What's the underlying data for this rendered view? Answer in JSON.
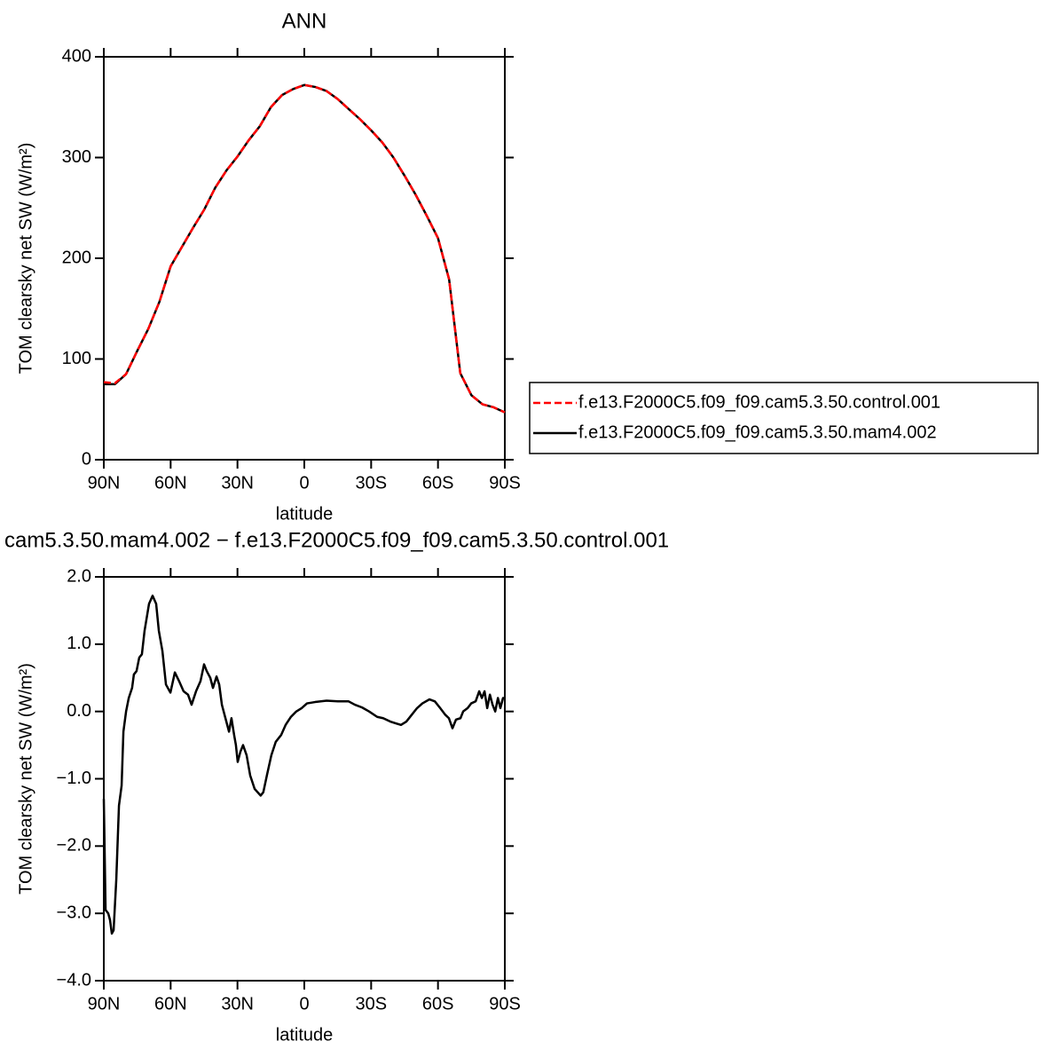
{
  "chart_data": [
    {
      "type": "line",
      "title": "ANN",
      "xlabel": "latitude",
      "ylabel": "TOM clearsky net SW (W/m²)",
      "x": [
        90,
        85,
        80,
        75,
        70,
        65,
        60,
        55,
        50,
        45,
        40,
        35,
        30,
        25,
        20,
        15,
        10,
        5,
        0,
        -5,
        -10,
        -15,
        -20,
        -25,
        -30,
        -35,
        -40,
        -45,
        -50,
        -55,
        -60,
        -65,
        -70,
        -75,
        -80,
        -85,
        -90
      ],
      "series": [
        {
          "name": "f.e13.F2000C5.f09_f09.cam5.3.50.control.001",
          "color": "#ff0000",
          "line_style": "dashed",
          "values": [
            77,
            76,
            85,
            108,
            130,
            157,
            192,
            211,
            230,
            248,
            270,
            287,
            301,
            317,
            331,
            350,
            362,
            368,
            372,
            370,
            366,
            358,
            348,
            338,
            327,
            315,
            300,
            282,
            263,
            242,
            220,
            179,
            86,
            64,
            55,
            52,
            47
          ]
        },
        {
          "name": "f.e13.F2000C5.f09_f09.cam5.3.50.mam4.002",
          "color": "#000000",
          "line_style": "solid",
          "values": [
            75,
            75,
            85,
            108,
            130,
            157,
            192,
            211,
            230,
            248,
            270,
            287,
            301,
            317,
            331,
            350,
            362,
            368,
            372,
            370,
            366,
            358,
            348,
            338,
            327,
            315,
            300,
            282,
            263,
            242,
            220,
            179,
            86,
            64,
            55,
            52,
            47
          ]
        }
      ],
      "xlim": [
        90,
        -90
      ],
      "xticks": [
        {
          "value": 90,
          "label": "90N"
        },
        {
          "value": 60,
          "label": "60N"
        },
        {
          "value": 30,
          "label": "30N"
        },
        0,
        {
          "value": -30,
          "label": "30S"
        },
        {
          "value": -60,
          "label": "60S"
        },
        {
          "value": -90,
          "label": "90S"
        }
      ],
      "ylim": [
        0,
        400
      ],
      "yticks": [
        0,
        100,
        200,
        300,
        400
      ],
      "legend_position": "right"
    },
    {
      "type": "line",
      "title": "cam5.3.50.mam4.002 − f.e13.F2000C5.f09_f09.cam5.3.50.control.001",
      "xlabel": "latitude",
      "ylabel": "TOM clearsky net SW (W/m²)",
      "x": [
        90,
        89.2,
        88.0,
        87.2,
        86.4,
        85.6,
        84.4,
        83.2,
        82.0,
        81.2,
        80.0,
        78.8,
        77.3,
        76.5,
        75.3,
        74.1,
        72.9,
        71.7,
        69.7,
        68.1,
        66.5,
        65.3,
        63.7,
        62.1,
        60.1,
        58.1,
        56.2,
        54.2,
        52.2,
        50.6,
        48.6,
        46.6,
        45.0,
        43.8,
        42.2,
        41.0,
        39.4,
        38.2,
        37.0,
        35.4,
        33.8,
        32.7,
        31.5,
        30.7,
        29.9,
        28.7,
        27.5,
        25.9,
        24.3,
        22.3,
        19.6,
        18.4,
        16.8,
        14.8,
        12.8,
        10.4,
        8.4,
        6.0,
        3.6,
        1.2,
        -1.2,
        -4.8,
        -10.0,
        -15.1,
        -19.9,
        -22.7,
        -25.9,
        -29.1,
        -32.7,
        -35.4,
        -38.6,
        -41.4,
        -43.4,
        -45.8,
        -48.2,
        -50.6,
        -53.0,
        -56.2,
        -58.6,
        -61.0,
        -63.3,
        -64.9,
        -66.5,
        -68.1,
        -70.1,
        -71.3,
        -73.3,
        -74.9,
        -76.9,
        -78.5,
        -79.7,
        -80.9,
        -82.1,
        -83.3,
        -84.5,
        -85.7,
        -86.9,
        -88.0,
        -89.2,
        -90
      ],
      "values": [
        -1.3,
        -2.95,
        -3.0,
        -3.1,
        -3.3,
        -3.25,
        -2.5,
        -1.4,
        -1.1,
        -0.3,
        0.0,
        0.2,
        0.35,
        0.55,
        0.6,
        0.8,
        0.85,
        1.2,
        1.6,
        1.72,
        1.6,
        1.2,
        0.9,
        0.4,
        0.28,
        0.58,
        0.45,
        0.3,
        0.25,
        0.1,
        0.3,
        0.45,
        0.7,
        0.6,
        0.5,
        0.35,
        0.52,
        0.4,
        0.1,
        -0.1,
        -0.3,
        -0.1,
        -0.35,
        -0.5,
        -0.75,
        -0.6,
        -0.5,
        -0.65,
        -0.95,
        -1.15,
        -1.25,
        -1.2,
        -0.95,
        -0.65,
        -0.45,
        -0.35,
        -0.2,
        -0.08,
        0.0,
        0.05,
        0.12,
        0.14,
        0.16,
        0.15,
        0.15,
        0.1,
        0.06,
        0.0,
        -0.08,
        -0.1,
        -0.15,
        -0.18,
        -0.2,
        -0.15,
        -0.05,
        0.05,
        0.12,
        0.18,
        0.15,
        0.05,
        -0.05,
        -0.1,
        -0.25,
        -0.12,
        -0.1,
        0.0,
        0.05,
        0.12,
        0.15,
        0.3,
        0.2,
        0.3,
        0.05,
        0.25,
        0.1,
        0.0,
        0.2,
        0.05,
        0.2,
        0.2
      ],
      "color": "#000000",
      "xlim": [
        90,
        -90
      ],
      "xticks": [
        {
          "value": 90,
          "label": "90N"
        },
        {
          "value": 60,
          "label": "60N"
        },
        {
          "value": 30,
          "label": "30N"
        },
        0,
        {
          "value": -30,
          "label": "30S"
        },
        {
          "value": -60,
          "label": "60S"
        },
        {
          "value": -90,
          "label": "90S"
        }
      ],
      "ylim": [
        -4,
        2
      ],
      "yticks": [
        {
          "value": -4,
          "label": "−4.0"
        },
        {
          "value": -3,
          "label": "−3.0"
        },
        {
          "value": -2,
          "label": "−2.0"
        },
        {
          "value": -1,
          "label": "−1.0"
        },
        {
          "value": 0,
          "label": "0.0"
        },
        {
          "value": 1,
          "label": "1.0"
        },
        {
          "value": 2,
          "label": "2.0"
        }
      ]
    }
  ]
}
